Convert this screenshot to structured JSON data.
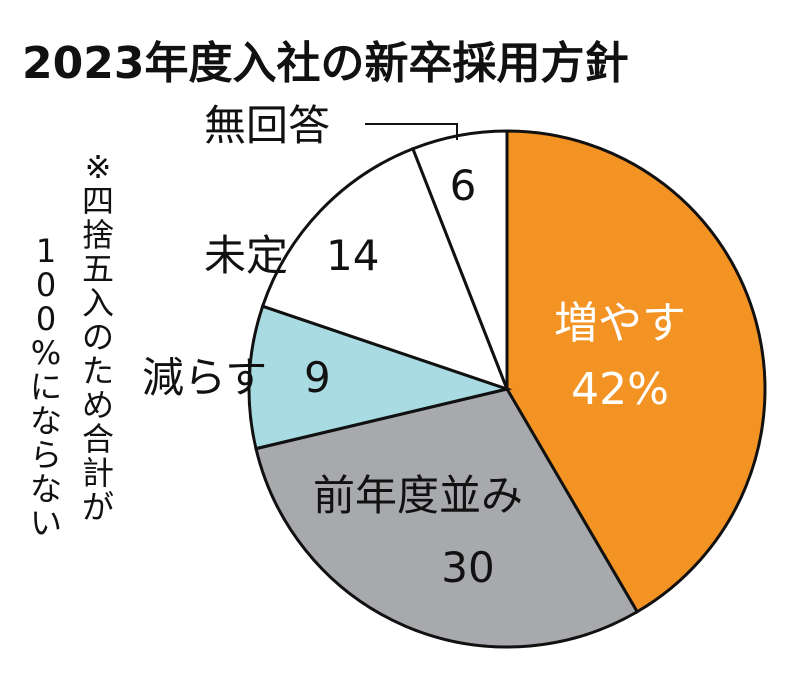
{
  "chart_data": {
    "type": "pie",
    "title": "2023年度入社の新卒採用方針",
    "unit": "%",
    "slices": [
      {
        "label": "増やす",
        "value": 42,
        "value_text": "42%",
        "color": "#f39323"
      },
      {
        "label": "前年度並み",
        "value": 30,
        "value_text": "30",
        "color": "#a8a9ad"
      },
      {
        "label": "減らす",
        "value": 9,
        "value_text": "9",
        "color": "#a8dce2"
      },
      {
        "label": "未定",
        "value": 14,
        "value_text": "14",
        "color": "#ffffff"
      },
      {
        "label": "無回答",
        "value": 6,
        "value_text": "6",
        "color": "#ffffff"
      }
    ],
    "note": "※四捨五入のため合計が100%にならない"
  }
}
